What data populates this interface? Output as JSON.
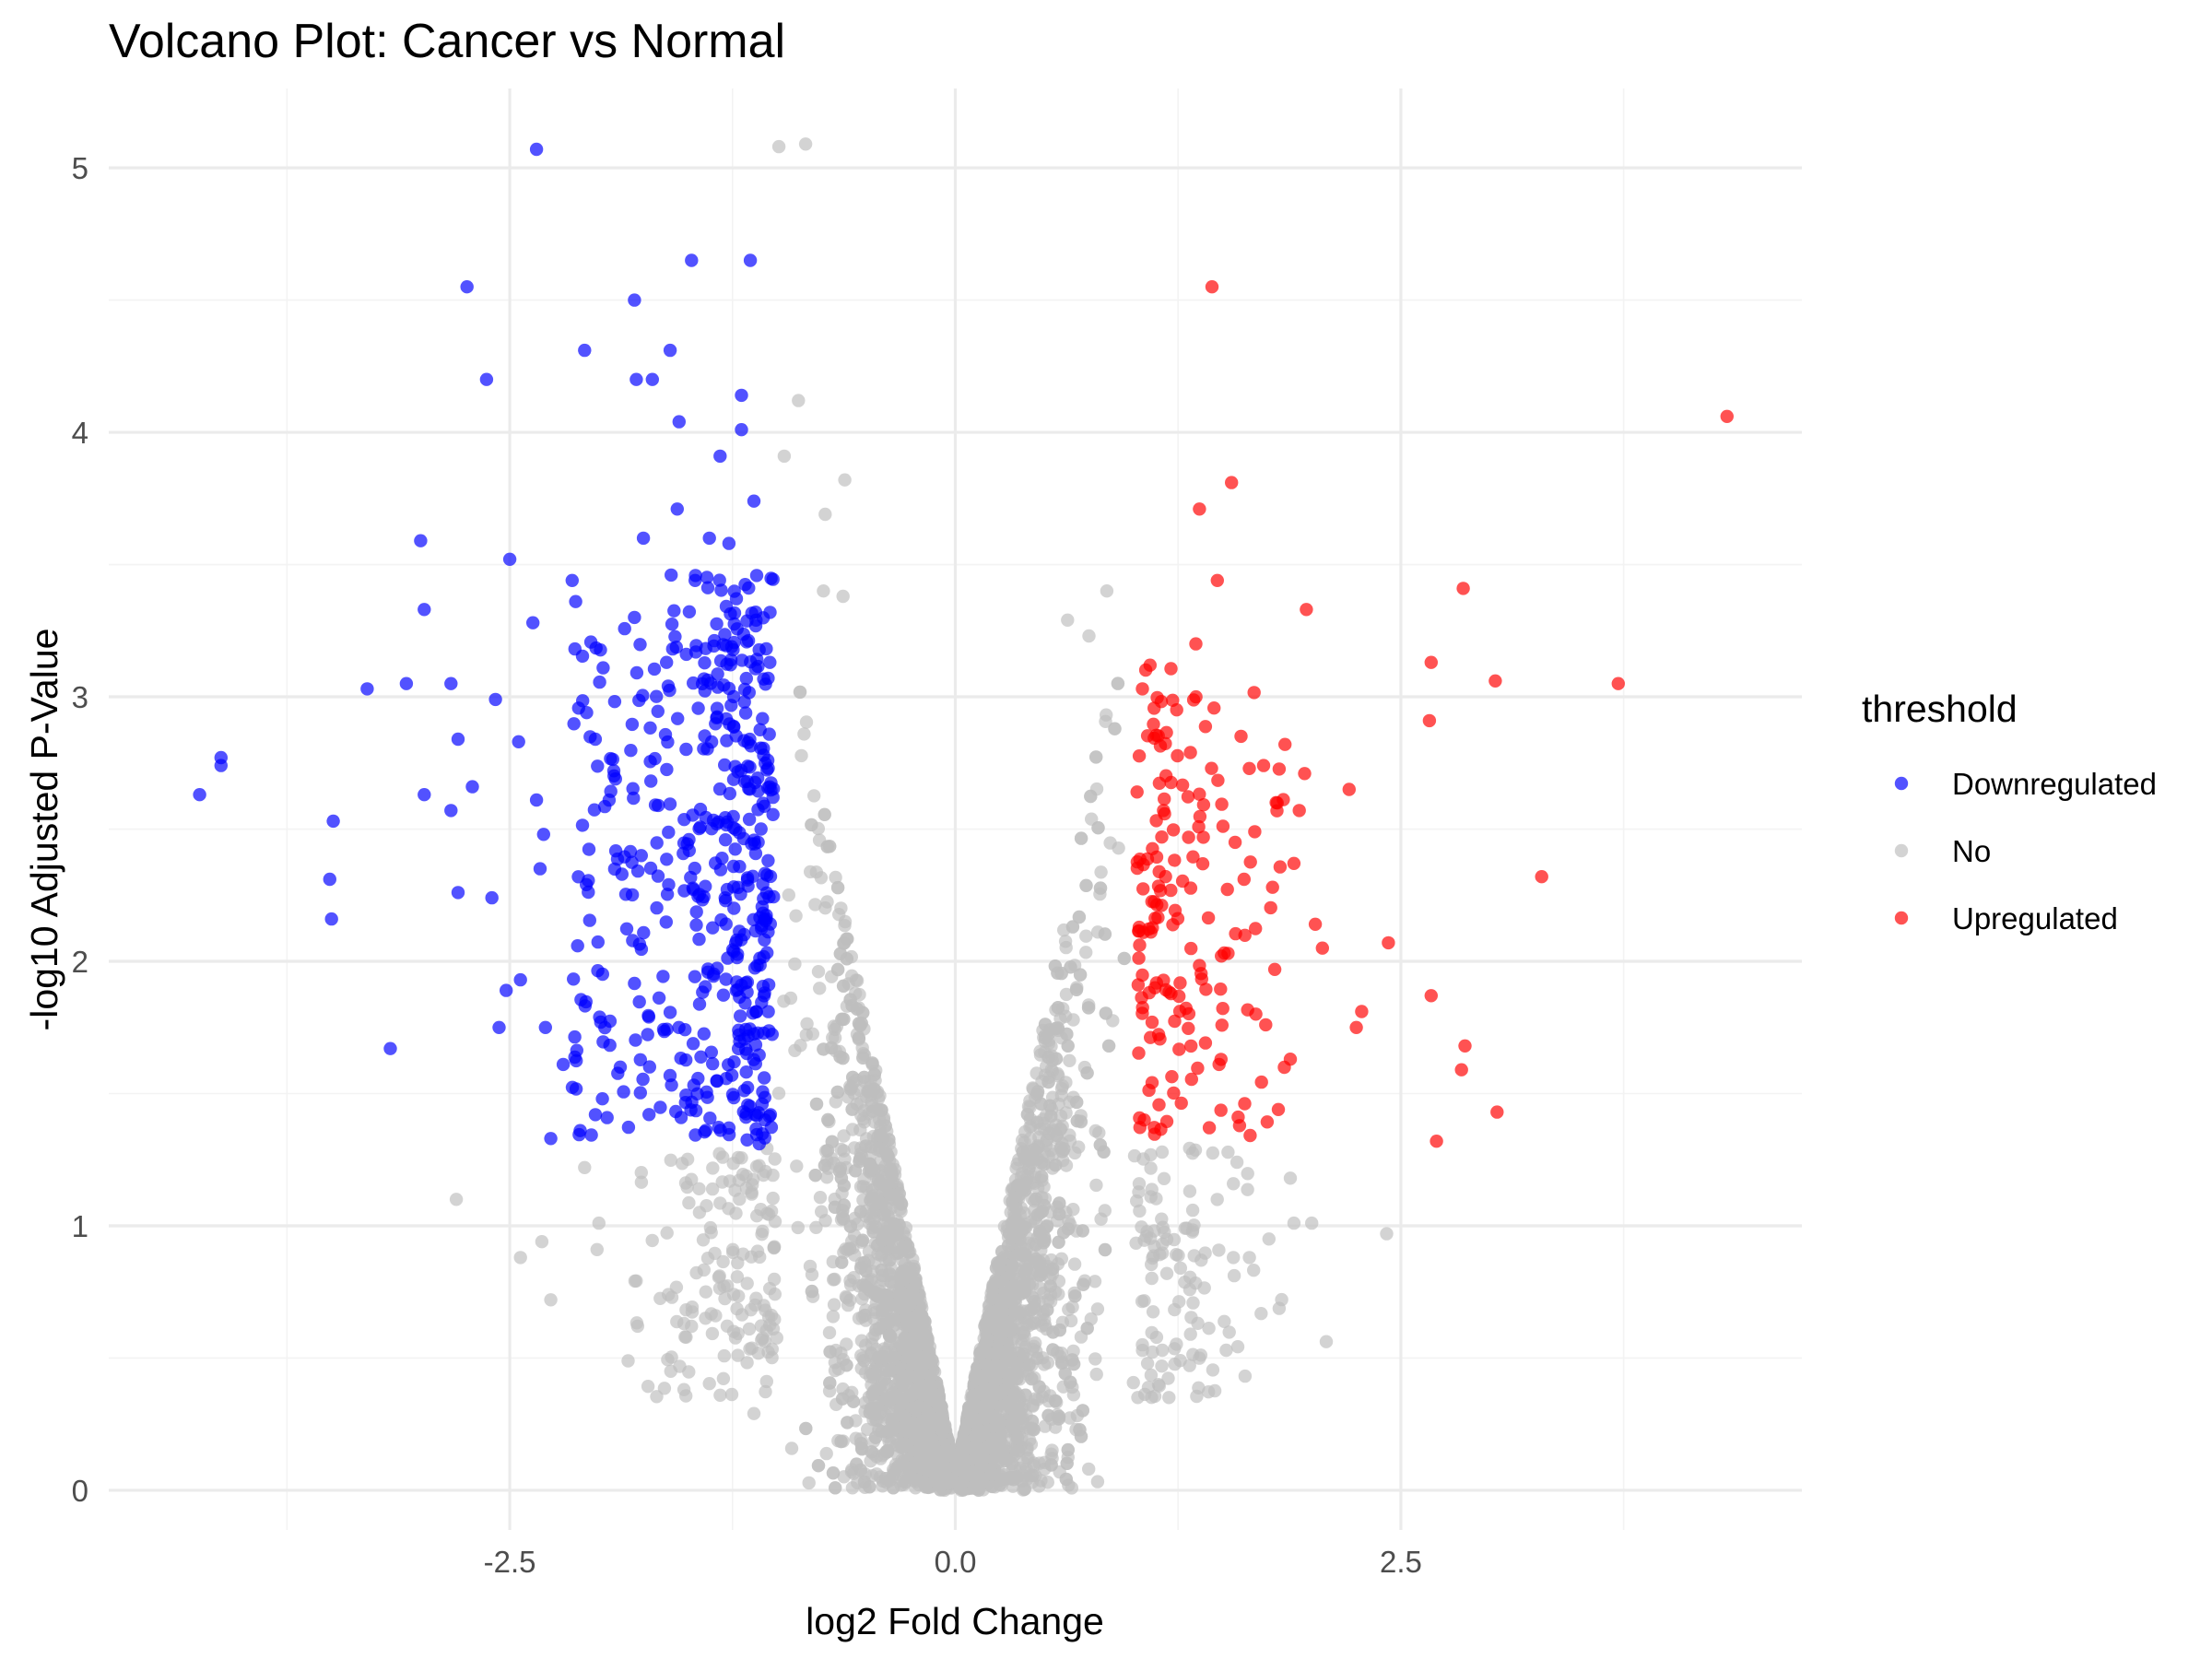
{
  "chart_data": {
    "type": "scatter",
    "title": "Volcano Plot: Cancer vs Normal",
    "xlabel": "log2 Fold Change",
    "ylabel": "-log10 Adjusted P-Value",
    "xlim": [
      -4.75,
      4.75
    ],
    "ylim": [
      -0.15,
      5.3
    ],
    "x_ticks": [
      -2.5,
      0.0,
      2.5
    ],
    "x_tick_labels": [
      "-2.5",
      "0.0",
      "2.5"
    ],
    "y_ticks": [
      0,
      1,
      2,
      3,
      4,
      5
    ],
    "y_tick_labels": [
      "0",
      "1",
      "2",
      "3",
      "4",
      "5"
    ],
    "grid": true,
    "legend": {
      "title": "threshold",
      "position": "right",
      "entries": [
        {
          "label": "Downregulated",
          "color": "#0000ff"
        },
        {
          "label": "No",
          "color": "#bebebe"
        },
        {
          "label": "Upregulated",
          "color": "#ff0000"
        }
      ]
    },
    "series": [
      {
        "name": "No",
        "color": "#bebebe",
        "note_points": [
          [
            -0.99,
            5.08
          ],
          [
            -0.84,
            5.09
          ],
          [
            -0.88,
            4.12
          ],
          [
            -0.96,
            3.91
          ],
          [
            -0.62,
            3.82
          ],
          [
            -0.73,
            3.69
          ],
          [
            -0.74,
            3.4
          ],
          [
            -0.63,
            3.38
          ],
          [
            0.85,
            3.4
          ],
          [
            0.63,
            3.29
          ],
          [
            0.75,
            3.23
          ],
          [
            -2.8,
            1.1
          ],
          [
            -2.08,
            1.22
          ],
          [
            -2.32,
            0.94
          ],
          [
            -2.27,
            0.72
          ],
          [
            -2.44,
            0.88
          ],
          [
            -2.0,
            1.01
          ],
          [
            -2.01,
            0.91
          ],
          [
            1.9,
            1.01
          ],
          [
            2.0,
            1.01
          ],
          [
            2.42,
            0.97
          ],
          [
            1.76,
            0.95
          ],
          [
            1.56,
            0.88
          ],
          [
            1.65,
            0.88
          ],
          [
            1.38,
            0.87
          ],
          [
            1.88,
            1.18
          ],
          [
            -1.4,
            0.75
          ],
          [
            -1.61,
            0.74
          ],
          [
            -1.48,
            0.62
          ],
          [
            -1.13,
            0.29
          ],
          [
            -1.22,
            0.51
          ],
          [
            1.05,
            0.55
          ],
          [
            1.14,
            0.4
          ],
          [
            1.32,
            0.59
          ]
        ],
        "note": "Dense V-shaped cloud of non-significant genes; x within roughly [-1, 1] and y from 0 to about 3.4; the listed points are the visible outliers, the script fills in the dense cloud"
      },
      {
        "name": "Downregulated",
        "color": "#0000ff",
        "note_points": [
          [
            -2.35,
            5.07
          ],
          [
            -1.48,
            4.65
          ],
          [
            -1.15,
            4.65
          ],
          [
            -2.74,
            4.55
          ],
          [
            -1.8,
            4.5
          ],
          [
            -2.08,
            4.31
          ],
          [
            -1.6,
            4.31
          ],
          [
            -2.63,
            4.2
          ],
          [
            -1.79,
            4.2
          ],
          [
            -1.7,
            4.2
          ],
          [
            -1.2,
            4.14
          ],
          [
            -1.55,
            4.04
          ],
          [
            -1.2,
            4.01
          ],
          [
            -1.32,
            3.91
          ],
          [
            -1.13,
            3.74
          ],
          [
            -1.56,
            3.71
          ],
          [
            -4.24,
            2.63
          ],
          [
            -4.12,
            2.77
          ],
          [
            -4.12,
            2.74
          ],
          [
            -3.51,
            2.31
          ],
          [
            -3.5,
            2.16
          ],
          [
            -3.49,
            2.53
          ],
          [
            -3.3,
            3.03
          ],
          [
            -3.17,
            1.67
          ],
          [
            -3.08,
            3.05
          ],
          [
            -3.0,
            3.59
          ],
          [
            -2.98,
            3.33
          ],
          [
            -2.98,
            2.63
          ],
          [
            -2.83,
            3.05
          ],
          [
            -2.83,
            2.57
          ],
          [
            -2.79,
            2.84
          ],
          [
            -2.79,
            2.26
          ],
          [
            -2.71,
            2.66
          ],
          [
            -2.6,
            2.24
          ],
          [
            -2.58,
            2.99
          ],
          [
            -2.56,
            1.75
          ],
          [
            -2.52,
            1.89
          ],
          [
            -2.5,
            3.52
          ],
          [
            -2.45,
            2.83
          ],
          [
            -2.44,
            1.93
          ],
          [
            -2.37,
            3.28
          ],
          [
            -2.35,
            2.61
          ],
          [
            -2.33,
            2.35
          ],
          [
            -2.31,
            2.48
          ],
          [
            -2.3,
            1.75
          ],
          [
            -2.27,
            1.33
          ],
          [
            -2.2,
            1.61
          ],
          [
            -2.15,
            3.44
          ],
          [
            -2.13,
            3.36
          ],
          [
            -2.07,
            2.29
          ],
          [
            -2.02,
            2.84
          ],
          [
            -1.98,
            1.48
          ],
          [
            -1.88,
            1.6
          ],
          [
            -1.8,
            3.3
          ],
          [
            -1.75,
            3.6
          ],
          [
            -1.62,
            3.13
          ],
          [
            -1.46,
            3.44
          ],
          [
            -1.38,
            3.6
          ],
          [
            -1.27,
            3.58
          ],
          [
            -1.27,
            1.37
          ],
          [
            -1.12,
            3.32
          ],
          [
            -1.1,
            1.31
          ],
          [
            -1.09,
            2.5
          ],
          [
            -1.07,
            1.88
          ],
          [
            -1.06,
            2.16
          ],
          [
            -1.05,
            2.73
          ]
        ],
        "note": "Dense cluster of significant downregulated genes with x between about -1.7 and -1.0 and y between 1.3 and 3.5; the listed points are the visible outliers, the script fills in the cluster"
      },
      {
        "name": "Upregulated",
        "color": "#ff0000",
        "note_points": [
          [
            4.33,
            4.06
          ],
          [
            1.44,
            4.55
          ],
          [
            1.55,
            3.81
          ],
          [
            1.37,
            3.71
          ],
          [
            1.47,
            3.44
          ],
          [
            2.85,
            3.41
          ],
          [
            1.97,
            3.33
          ],
          [
            1.35,
            3.2
          ],
          [
            2.67,
            3.13
          ],
          [
            3.03,
            3.06
          ],
          [
            3.72,
            3.05
          ],
          [
            2.66,
            2.91
          ],
          [
            3.29,
            2.32
          ],
          [
            2.43,
            2.07
          ],
          [
            2.67,
            1.87
          ],
          [
            2.86,
            1.68
          ],
          [
            2.84,
            1.59
          ],
          [
            3.04,
            1.43
          ],
          [
            2.7,
            1.32
          ],
          [
            2.28,
            1.81
          ],
          [
            2.25,
            1.75
          ],
          [
            2.21,
            2.65
          ],
          [
            2.06,
            2.05
          ],
          [
            2.02,
            2.14
          ],
          [
            1.96,
            2.71
          ],
          [
            1.93,
            2.57
          ],
          [
            1.9,
            2.37
          ],
          [
            1.88,
            1.63
          ],
          [
            1.85,
            2.82
          ],
          [
            1.8,
            2.6
          ],
          [
            1.78,
            2.28
          ],
          [
            1.73,
            2.74
          ],
          [
            1.68,
            2.49
          ],
          [
            1.62,
            2.31
          ],
          [
            1.57,
            2.45
          ],
          [
            1.53,
            2.03
          ],
          [
            1.48,
            1.61
          ],
          [
            1.12,
            1.9
          ],
          [
            1.06,
            1.4
          ],
          [
            1.05,
            3.03
          ],
          [
            1.02,
            2.64
          ]
        ],
        "note": "Significant upregulated genes with x between about 1.0 and 1.7 and y between 1.3 and 3.2; the listed points are the visible outliers, the script fills in the cluster"
      }
    ]
  }
}
